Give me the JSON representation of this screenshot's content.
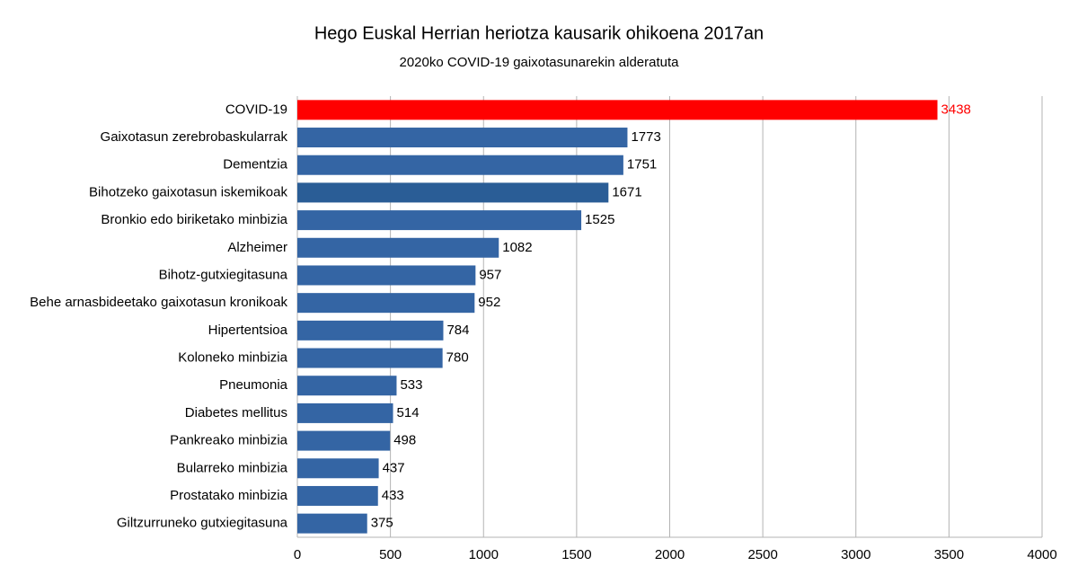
{
  "chart_data": {
    "type": "barh",
    "title": "Hego Euskal Herrian heriotza kausarik ohikoena 2017an",
    "subtitle": "2020ko COVID-19 gaixotasunarekin alderatuta",
    "categories": [
      "COVID-19",
      "Gaixotasun zerebrobaskularrak",
      "Dementzia",
      "Bihotzeko gaixotasun iskemikoak",
      "Bronkio edo biriketako minbizia",
      "Alzheimer",
      "Bihotz-gutxiegitasuna",
      "Behe arnasbideetako gaixotasun kronikoak",
      "Hipertentsioa",
      "Koloneko minbizia",
      "Pneumonia",
      "Diabetes mellitus",
      "Pankreako minbizia",
      "Bularreko minbizia",
      "Prostatako minbizia",
      "Giltzurruneko gutxiegitasuna"
    ],
    "values": [
      3438,
      1773,
      1751,
      1671,
      1525,
      1082,
      957,
      952,
      784,
      780,
      533,
      514,
      498,
      437,
      433,
      375
    ],
    "colors": [
      "#ff0000",
      "#3465a4",
      "#3465a4",
      "#2a5d96",
      "#3465a4",
      "#3465a4",
      "#3465a4",
      "#3465a4",
      "#3465a4",
      "#3465a4",
      "#3465a4",
      "#3465a4",
      "#3465a4",
      "#3465a4",
      "#3465a4",
      "#3465a4"
    ],
    "value_label_colors": [
      "#ff0000",
      "#000000",
      "#000000",
      "#000000",
      "#000000",
      "#000000",
      "#000000",
      "#000000",
      "#000000",
      "#000000",
      "#000000",
      "#000000",
      "#000000",
      "#000000",
      "#000000",
      "#000000"
    ],
    "xlim": [
      0,
      4000
    ],
    "xticks": [
      0,
      500,
      1000,
      1500,
      2000,
      2500,
      3000,
      3500,
      4000
    ],
    "grid": true
  }
}
